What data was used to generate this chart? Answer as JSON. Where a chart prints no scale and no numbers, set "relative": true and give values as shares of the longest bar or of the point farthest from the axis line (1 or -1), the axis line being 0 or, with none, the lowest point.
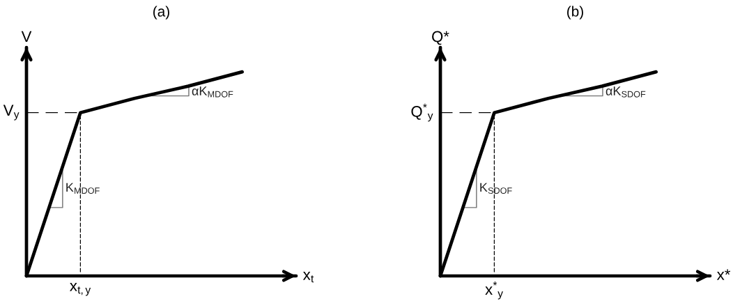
{
  "chart_data": [
    {
      "type": "line",
      "title": "(a)",
      "xlabel": "x$_{t}$",
      "ylabel": "V",
      "relative": true,
      "line_style": "solid",
      "categories": [
        null,
        null,
        null,
        null,
        null,
        null
      ],
      "series": [
        {
          "color": "#000000",
          "values": [
            0,
            0.8,
            0.87,
            0.93,
            1,
            null
          ]
        }
      ],
      "ref_lines": [
        {
          "axis": "y",
          "value": 0.8,
          "label": "V$_{y}$",
          "line_style": "dashed",
          "color": "#000000"
        }
      ],
      "annotations": [
        {
          "text": "x$_{t,y}$",
          "y": 0.8
        },
        "K$_{MDOF}$",
        "αK$_{MDOF}$"
      ]
    },
    {
      "type": "line",
      "title": "(b)",
      "xlabel": "x*",
      "ylabel": "Q*",
      "relative": true,
      "line_style": "solid",
      "categories": [
        null,
        null,
        null,
        null,
        null,
        null
      ],
      "series": [
        {
          "color": "#000000",
          "values": [
            0,
            0.8,
            0.87,
            0.93,
            1,
            null
          ]
        }
      ],
      "ref_lines": [
        {
          "axis": "y",
          "value": 0.8,
          "label": "Q$^{*}$$_{y}$",
          "line_style": "dashed",
          "color": "#000000"
        }
      ],
      "annotations": [
        {
          "text": "x$^{*}$$_{y}$",
          "y": 0.8
        },
        "K$_{SDOF}$",
        "αK$_{SDOF}$"
      ]
    }
  ]
}
